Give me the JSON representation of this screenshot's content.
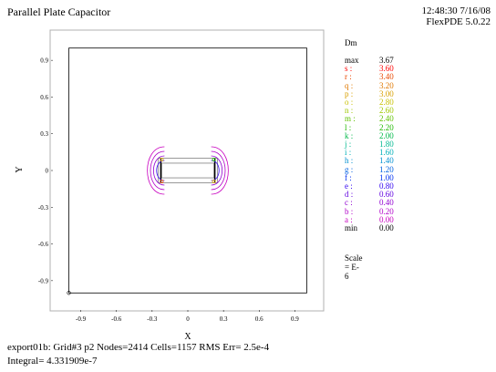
{
  "header": {
    "title": "Parallel Plate Capacitor",
    "timestamp": "12:48:30 7/16/08",
    "software": "FlexPDE 5.0.22"
  },
  "footer": {
    "line1": "export01b:  Grid#3  p2  Nodes=2414 Cells=1157 RMS Err= 2.5e-4",
    "line2": "Integral=  4.331909e-7"
  },
  "legend": {
    "title": "Dm",
    "scale": "Scale = E-6",
    "entries": [
      {
        "label": "max",
        "value": "3.67",
        "color": "#000000"
      },
      {
        "label": "s :",
        "value": "3.60",
        "color": "#ff0000"
      },
      {
        "label": "r :",
        "value": "3.40",
        "color": "#e84800"
      },
      {
        "label": "q :",
        "value": "3.20",
        "color": "#e07800"
      },
      {
        "label": "p :",
        "value": "3.00",
        "color": "#d8a000"
      },
      {
        "label": "o :",
        "value": "2.80",
        "color": "#c8c000"
      },
      {
        "label": "n :",
        "value": "2.60",
        "color": "#a0c800"
      },
      {
        "label": "m :",
        "value": "2.40",
        "color": "#60c000"
      },
      {
        "label": "l :",
        "value": "2.20",
        "color": "#20b800"
      },
      {
        "label": "k :",
        "value": "2.00",
        "color": "#00b848"
      },
      {
        "label": "j :",
        "value": "1.80",
        "color": "#00b890"
      },
      {
        "label": "i :",
        "value": "1.60",
        "color": "#00b0b8"
      },
      {
        "label": "h :",
        "value": "1.40",
        "color": "#0090d0"
      },
      {
        "label": "g :",
        "value": "1.20",
        "color": "#0060e0"
      },
      {
        "label": "f :",
        "value": "1.00",
        "color": "#0030f0"
      },
      {
        "label": "e :",
        "value": "0.80",
        "color": "#3000f0"
      },
      {
        "label": "d :",
        "value": "0.60",
        "color": "#6000e0"
      },
      {
        "label": "c :",
        "value": "0.40",
        "color": "#9000d0"
      },
      {
        "label": "b :",
        "value": "0.20",
        "color": "#b000c8"
      },
      {
        "label": "a :",
        "value": "0.00",
        "color": "#c800c0"
      },
      {
        "label": "min",
        "value": "0.00",
        "color": "#000000"
      }
    ]
  },
  "chart_data": {
    "type": "contour",
    "title": "Parallel Plate Capacitor",
    "xlabel": "X",
    "ylabel": "Y",
    "xlim": [
      -1.05,
      1.05
    ],
    "ylim": [
      -1.05,
      1.05
    ],
    "xticks": [
      "-0.9",
      "-0.6",
      "-0.3",
      "0",
      "0.3",
      "0.6",
      "0.9"
    ],
    "yticks": [
      "0.9",
      "0.6",
      "0.3",
      "0",
      "-0.3",
      "-0.6",
      "-0.9"
    ],
    "xtick_values": [
      -0.9,
      -0.6,
      -0.3,
      0,
      0.3,
      0.6,
      0.9
    ],
    "ytick_values": [
      0.9,
      0.6,
      0.3,
      0,
      -0.3,
      -0.6,
      -0.9
    ],
    "grid": false,
    "outer_boundary": {
      "x": [
        -1.0,
        1.0
      ],
      "y": [
        -1.0,
        1.0
      ]
    },
    "plate_region": {
      "x": [
        -0.25,
        0.25
      ],
      "y": [
        -0.1,
        0.1
      ]
    },
    "inner_region": {
      "x": [
        -0.22,
        0.22
      ],
      "y": [
        -0.06,
        0.06
      ]
    },
    "origin_marker": [
      -1.0,
      -1.0
    ]
  }
}
